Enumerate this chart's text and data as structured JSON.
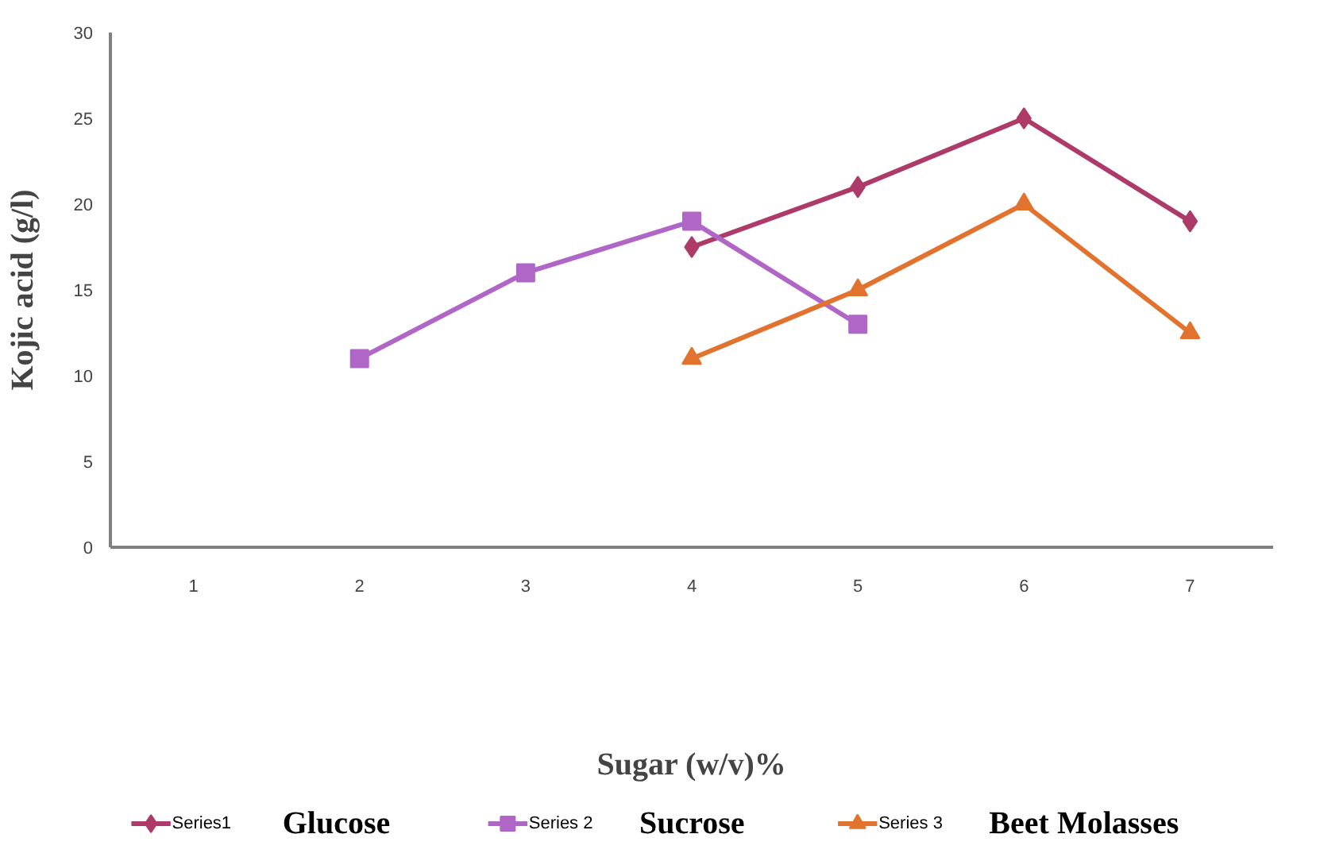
{
  "chart_data": {
    "type": "line",
    "xlabel": "Sugar (w/v)%",
    "ylabel": "Kojic acid (g/l)",
    "categories": [
      "1",
      "2",
      "3",
      "4",
      "5",
      "6",
      "7"
    ],
    "ylim": [
      0,
      30
    ],
    "yticks": [
      0,
      5,
      10,
      15,
      20,
      25,
      30
    ],
    "grid": false,
    "legend": "bottom",
    "series": [
      {
        "name": "Series1",
        "color": "#ad3a68",
        "marker": "diamond",
        "values": [
          null,
          null,
          null,
          17.5,
          21,
          25,
          19
        ]
      },
      {
        "name": "Series 2",
        "color": "#b066c6",
        "marker": "square",
        "values": [
          null,
          11,
          16,
          19,
          13,
          null,
          null
        ]
      },
      {
        "name": "Series 3",
        "color": "#e2732f",
        "marker": "triangle",
        "values": [
          null,
          null,
          null,
          11,
          15,
          20,
          12.5
        ]
      }
    ],
    "annotations": [
      "Glucose",
      "Sucrose",
      "Beet Molasses"
    ]
  }
}
